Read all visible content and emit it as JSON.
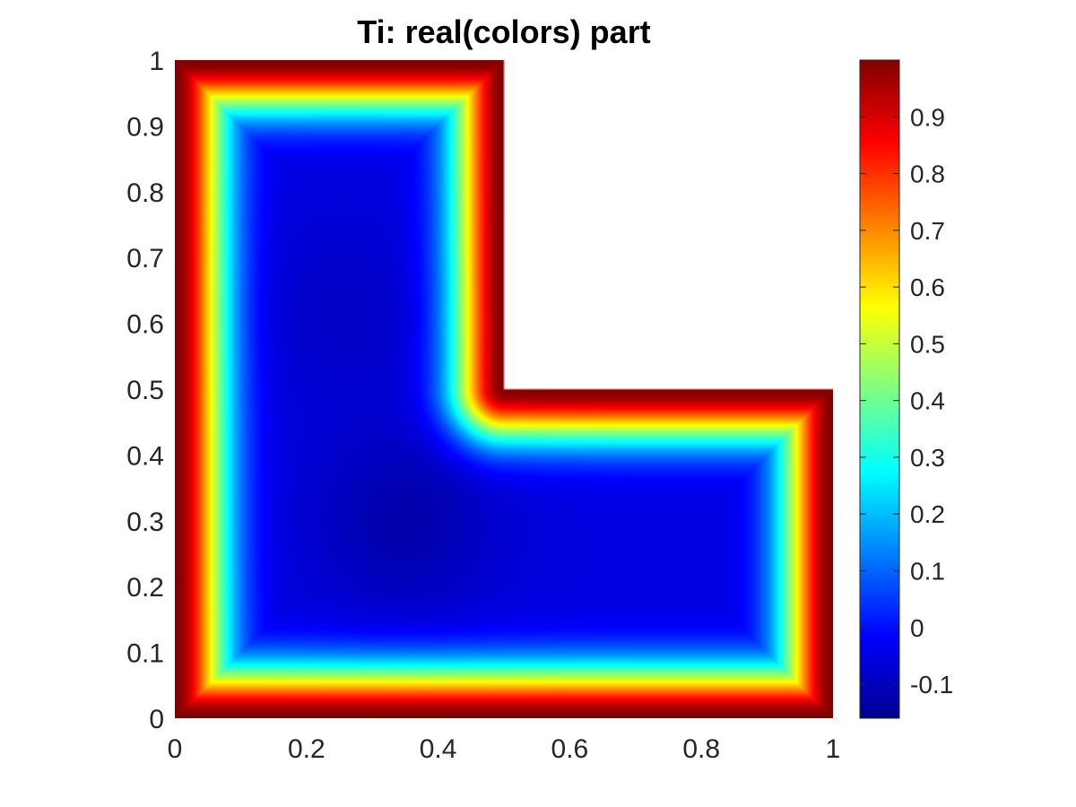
{
  "chart_data": {
    "type": "heatmap",
    "title": "Ti: real(colors) part",
    "xlabel": "",
    "ylabel": "",
    "xlim": [
      0,
      1
    ],
    "ylim": [
      0,
      1
    ],
    "x_ticks": [
      "0",
      "0.2",
      "0.4",
      "0.6",
      "0.8",
      "1"
    ],
    "y_ticks": [
      "0",
      "0.1",
      "0.2",
      "0.3",
      "0.4",
      "0.5",
      "0.6",
      "0.7",
      "0.8",
      "0.9",
      "1"
    ],
    "domain": "L-shaped region: [0,1]x[0,0.5] union [0,0.5]x[0.5,1]",
    "colormap": "jet",
    "colorbar": {
      "range": [
        -0.16,
        1.0
      ],
      "ticks": [
        "-0.1",
        "0",
        "0.1",
        "0.2",
        "0.3",
        "0.4",
        "0.5",
        "0.6",
        "0.7",
        "0.8",
        "0.9"
      ],
      "placement": "right"
    },
    "field_summary": {
      "boundary_value": 1.0,
      "minimum_value": -0.16,
      "minimum_location": [
        0.35,
        0.3
      ]
    },
    "grid": false
  }
}
